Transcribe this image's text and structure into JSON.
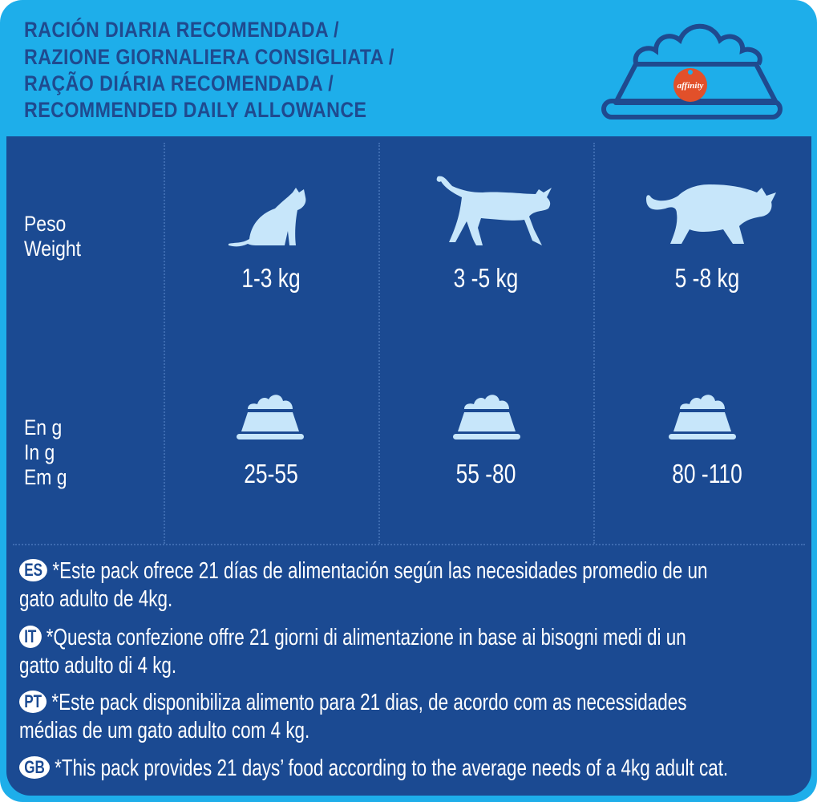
{
  "header": {
    "lines": [
      "RACIÓN DIARIA RECOMENDADA /",
      "RAZIONE GIORNALIERA CONSIGLIATA /",
      "RAÇÃO DIÁRIA RECOMENDADA /",
      "RECOMMENDED DAILY ALLOWANCE"
    ],
    "logo_text": "affinity",
    "icon": "food-bowl-icon"
  },
  "colors": {
    "header_bg": "#1eaeea",
    "panel_bg": "#1b4a92",
    "icon_fill": "#c7e6fa",
    "logo": "#e2502a"
  },
  "weight_label": [
    "Peso",
    "Weight"
  ],
  "grams_label": [
    "En g",
    "In g",
    "Em g"
  ],
  "columns": [
    {
      "weight": "1-3 kg",
      "grams": "25-55",
      "icon": "small-cat-icon"
    },
    {
      "weight": "3 -5 kg",
      "grams": "55 -80",
      "icon": "medium-cat-icon"
    },
    {
      "weight": "5 -8 kg",
      "grams": "80 -110",
      "icon": "large-cat-icon"
    }
  ],
  "footer": [
    {
      "code": "ES",
      "lines": [
        "*Este pack ofrece 21 días de alimentación según las necesidades promedio de un",
        "gato adulto de 4kg."
      ]
    },
    {
      "code": "IT",
      "lines": [
        "*Questa confezione offre 21 giorni di alimentazione in base ai bisogni medi di un",
        "gatto adulto di 4 kg."
      ]
    },
    {
      "code": "PT",
      "lines": [
        "*Este pack disponibiliza alimento para 21 dias, de acordo com as necessidades",
        "médias de um gato adulto com 4 kg."
      ]
    },
    {
      "code": "GB",
      "lines": [
        "*This pack provides 21 days’ food according to the average needs of a 4kg adult cat."
      ]
    }
  ]
}
